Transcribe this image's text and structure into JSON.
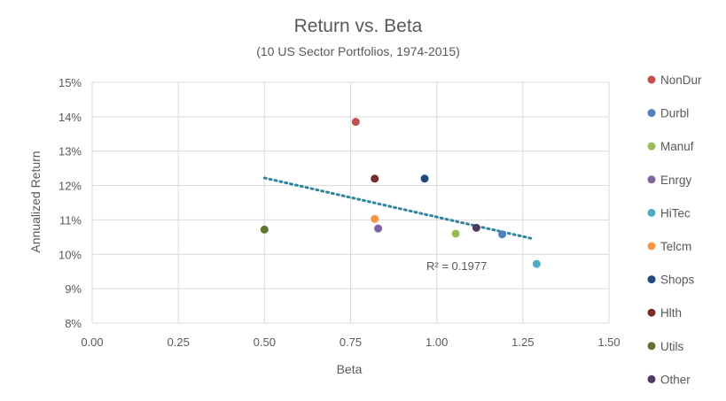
{
  "chart_data": {
    "type": "scatter",
    "title": "Return vs. Beta",
    "subtitle": "(10 US Sector Portfolios, 1974-2015)",
    "xlabel": "Beta",
    "ylabel": "Annualized Return",
    "xlim": [
      0,
      1.5
    ],
    "ylim": [
      8,
      15
    ],
    "x_ticks": [
      "0.00",
      "0.25",
      "0.50",
      "0.75",
      "1.00",
      "1.25",
      "1.50"
    ],
    "y_ticks": [
      "8%",
      "9%",
      "10%",
      "11%",
      "12%",
      "13%",
      "14%",
      "15%"
    ],
    "grid": true,
    "legend_position": "right",
    "series": [
      {
        "name": "NonDur",
        "color": "#c0504d",
        "x": 0.765,
        "y": 13.85
      },
      {
        "name": "Durbl",
        "color": "#4f81bd",
        "x": 1.19,
        "y": 10.58
      },
      {
        "name": "Manuf",
        "color": "#9bbb59",
        "x": 1.055,
        "y": 10.6
      },
      {
        "name": "Enrgy",
        "color": "#8064a2",
        "x": 0.83,
        "y": 10.75
      },
      {
        "name": "HiTec",
        "color": "#4bacc6",
        "x": 1.29,
        "y": 9.72
      },
      {
        "name": "Telcm",
        "color": "#f79646",
        "x": 0.82,
        "y": 11.03
      },
      {
        "name": "Shops",
        "color": "#1f497d",
        "x": 0.965,
        "y": 12.2
      },
      {
        "name": "Hlth",
        "color": "#772c2a",
        "x": 0.82,
        "y": 12.2
      },
      {
        "name": "Utils",
        "color": "#5f7530",
        "x": 0.5,
        "y": 10.72
      },
      {
        "name": "Other",
        "color": "#4d3b62",
        "x": 1.115,
        "y": 10.77
      }
    ],
    "trendline": {
      "type": "linear",
      "x_start": 0.5,
      "y_start": 12.22,
      "x_end": 1.28,
      "y_end": 10.45,
      "color": "#31859c",
      "r_squared_label": "R² = 0.1977"
    }
  }
}
